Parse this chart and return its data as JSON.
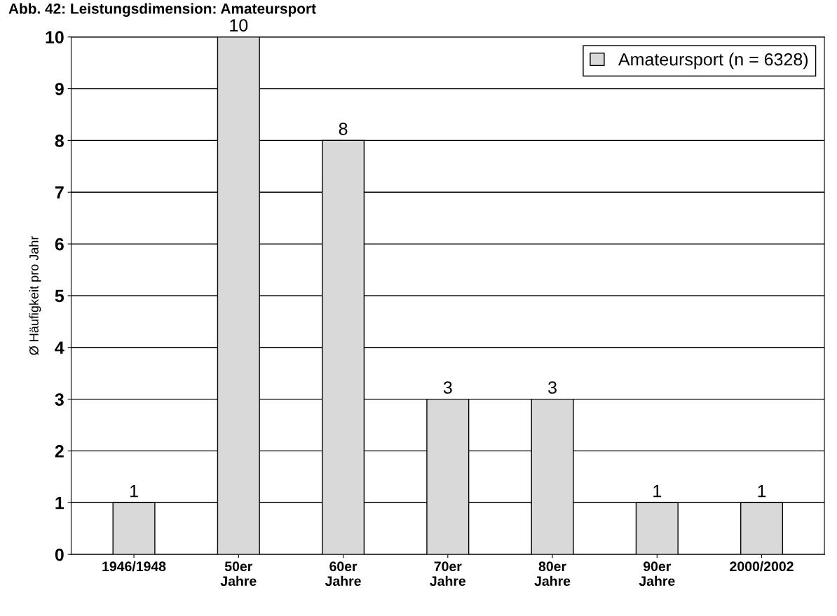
{
  "chart_data": {
    "type": "bar",
    "title": "Abb. 42: Leistungsdimension: Amateursport",
    "ylabel": "Ø Häufigkeit pro Jahr",
    "categories": [
      "1946/1948",
      "50er\nJahre",
      "60er\nJahre",
      "70er\nJahre",
      "80er\nJahre",
      "90er\nJahre",
      "2000/2002"
    ],
    "series": [
      {
        "name": "Amateursport (n = 6328)",
        "color": "#d9d9d9",
        "values": [
          1,
          10,
          8,
          3,
          3,
          1,
          1
        ]
      }
    ],
    "ylim": [
      0,
      10
    ],
    "yticks": [
      0,
      1,
      2,
      3,
      4,
      5,
      6,
      7,
      8,
      9,
      10
    ],
    "grid": "y",
    "legend": "top right",
    "data_labels": true
  }
}
